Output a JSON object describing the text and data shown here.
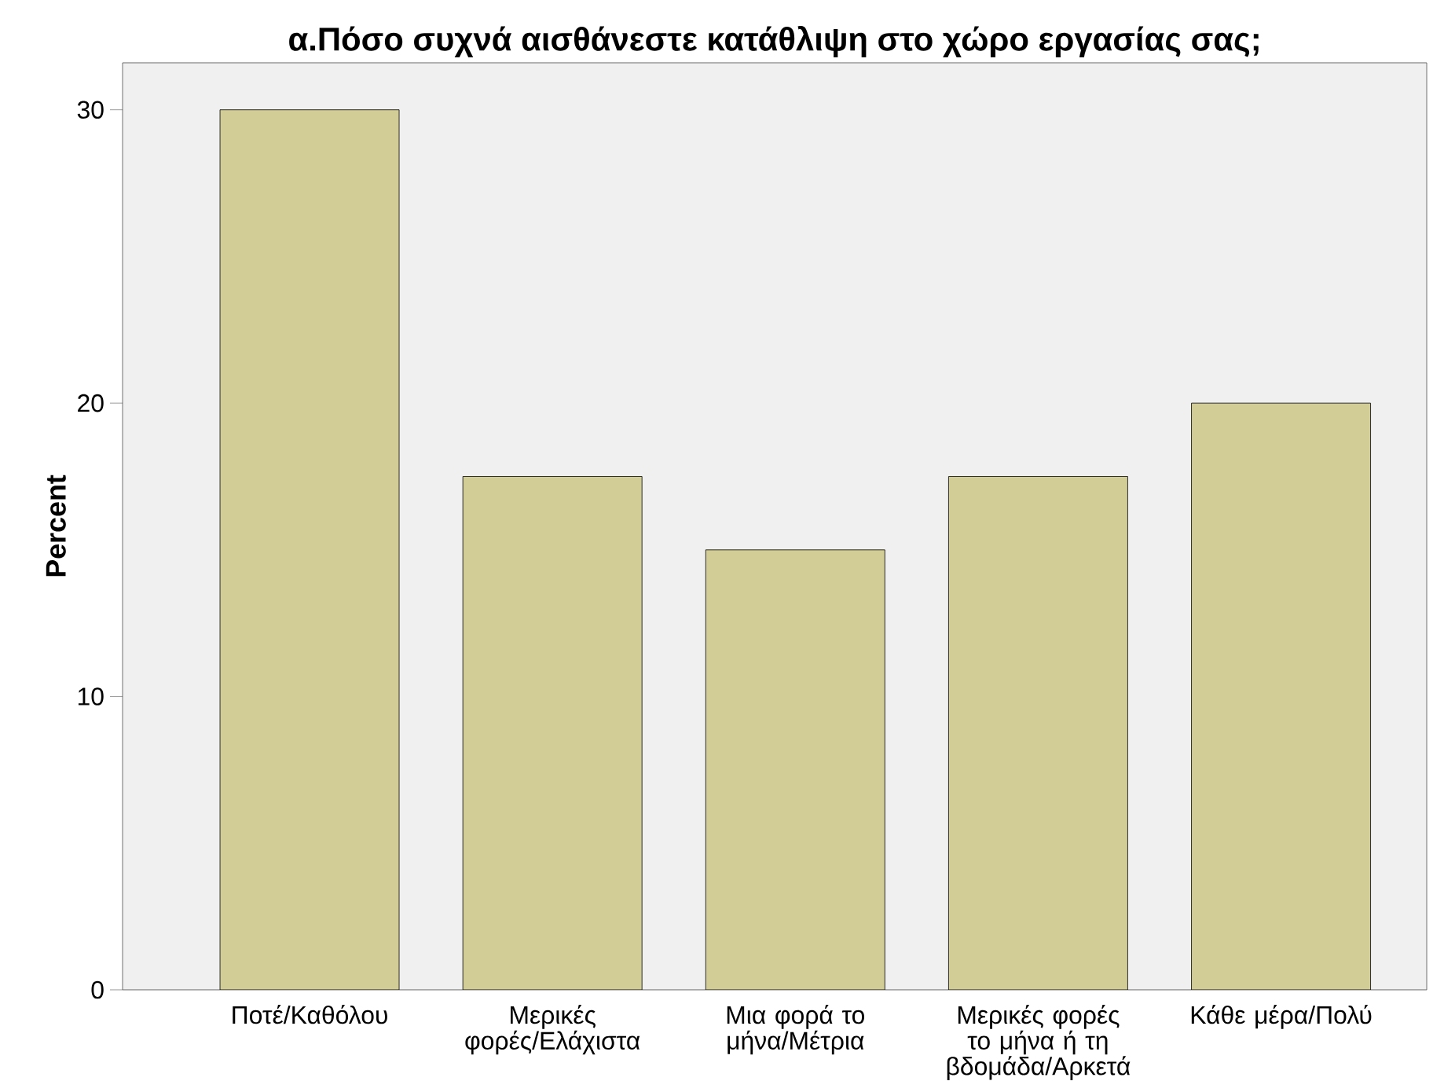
{
  "chart_data": {
    "type": "bar",
    "title": "α.Πόσο συχνά αισθάνεστε κατάθλιψη στο χώρο εργασίας σας;",
    "ylabel": "Percent",
    "categories": [
      "Ποτέ/Καθόλου",
      "Μερικές φορές/Ελάχιστα",
      "Μια φορά το μήνα/Μέτρια",
      "Μερικές φορές το μήνα ή τη βδομάδα/Αρκετά",
      "Κάθε μέρα/Πολύ"
    ],
    "values": [
      30,
      17.5,
      15,
      17.5,
      20
    ],
    "color": "#d2cd96",
    "ylim": [
      0,
      31.6
    ],
    "yticks": [
      0,
      10,
      20,
      30
    ],
    "grid": false
  }
}
